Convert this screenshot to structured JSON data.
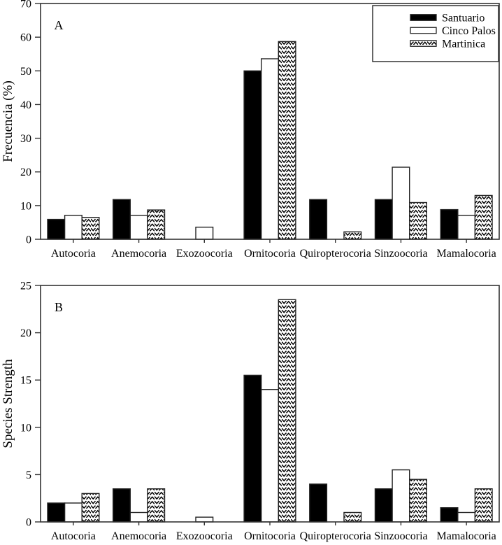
{
  "figure": {
    "background": "#ffffff",
    "colors": {
      "frame": "#333333",
      "bar_black": "#000000",
      "bar_white": "#ffffff",
      "bar_stroke": "#222222",
      "text": "#000000"
    }
  },
  "legend": {
    "entries": [
      {
        "label": "Santuario",
        "fill": "black"
      },
      {
        "label": "Cinco Palos",
        "fill": "white"
      },
      {
        "label": "Martinica",
        "fill": "weave"
      }
    ]
  },
  "chart_data": [
    {
      "type": "bar",
      "panel_label": "A",
      "ylabel": "Frecuencia (%)",
      "xlabel": "",
      "ylim": [
        0,
        70
      ],
      "yticks": [
        0,
        10,
        20,
        30,
        40,
        50,
        60,
        70
      ],
      "grid": false,
      "legend": true,
      "legend_position": "top-right",
      "categories": [
        "Autocoria",
        "Anemocoria",
        "Exozoocoria",
        "Ornitocoria",
        "Quiropterocoria",
        "Sinzoocoria",
        "Mamalocoria"
      ],
      "series": [
        {
          "name": "Santuario",
          "fill": "black",
          "values": [
            5.9,
            11.8,
            0,
            50,
            11.8,
            11.8,
            8.8
          ]
        },
        {
          "name": "Cinco Palos",
          "fill": "white",
          "values": [
            7.1,
            7.1,
            3.6,
            53.6,
            0,
            21.4,
            7.1
          ]
        },
        {
          "name": "Martinica",
          "fill": "weave",
          "values": [
            6.5,
            8.7,
            0,
            58.7,
            2.2,
            10.9,
            13
          ]
        }
      ]
    },
    {
      "type": "bar",
      "panel_label": "B",
      "ylabel": "Species Strength",
      "xlabel": "",
      "ylim": [
        0,
        25
      ],
      "yticks": [
        0,
        5,
        10,
        15,
        20,
        25
      ],
      "grid": false,
      "legend": false,
      "categories": [
        "Autocoria",
        "Anemocoria",
        "Exozoocoria",
        "Ornitocoria",
        "Quiropterocoria",
        "Sinzoocoria",
        "Mamalocoria"
      ],
      "series": [
        {
          "name": "Santuario",
          "fill": "black",
          "values": [
            2,
            3.5,
            0,
            15.5,
            4,
            3.5,
            1.5
          ]
        },
        {
          "name": "Cinco Palos",
          "fill": "white",
          "values": [
            2,
            1,
            0.5,
            14,
            0,
            5.5,
            1
          ]
        },
        {
          "name": "Martinica",
          "fill": "weave",
          "values": [
            3,
            3.5,
            0,
            23.5,
            1,
            4.5,
            3.5
          ]
        }
      ]
    }
  ]
}
